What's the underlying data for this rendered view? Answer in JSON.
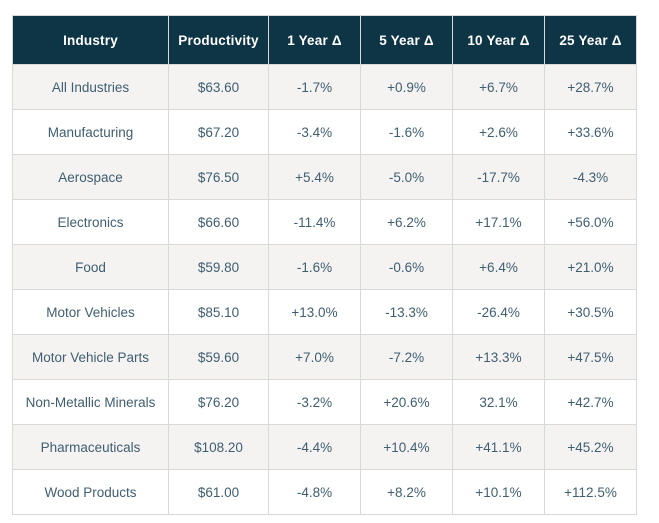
{
  "colors": {
    "header_bg": "#0e3546",
    "header_text": "#ffffff",
    "body_text": "#3f5e70",
    "row_alt_bg": "#f4f3f2",
    "row_bg": "#ffffff",
    "border": "#d9d9d9"
  },
  "chart_data": {
    "type": "table",
    "columns": [
      "Industry",
      "Productivity",
      "1 Year Δ",
      "5 Year Δ",
      "10 Year Δ",
      "25 Year Δ"
    ],
    "rows": [
      [
        "All Industries",
        "$63.60",
        "-1.7%",
        "+0.9%",
        "+6.7%",
        "+28.7%"
      ],
      [
        "Manufacturing",
        "$67.20",
        "-3.4%",
        "-1.6%",
        "+2.6%",
        "+33.6%"
      ],
      [
        "Aerospace",
        "$76.50",
        "+5.4%",
        "-5.0%",
        "-17.7%",
        "-4.3%"
      ],
      [
        "Electronics",
        "$66.60",
        "-11.4%",
        "+6.2%",
        "+17.1%",
        "+56.0%"
      ],
      [
        "Food",
        "$59.80",
        "-1.6%",
        "-0.6%",
        "+6.4%",
        "+21.0%"
      ],
      [
        "Motor Vehicles",
        "$85.10",
        "+13.0%",
        "-13.3%",
        "-26.4%",
        "+30.5%"
      ],
      [
        "Motor Vehicle Parts",
        "$59.60",
        "+7.0%",
        "-7.2%",
        "+13.3%",
        "+47.5%"
      ],
      [
        "Non-Metallic Minerals",
        "$76.20",
        "-3.2%",
        "+20.6%",
        "32.1%",
        "+42.7%"
      ],
      [
        "Pharmaceuticals",
        "$108.20",
        "-4.4%",
        "+10.4%",
        "+41.1%",
        "+45.2%"
      ],
      [
        "Wood Products",
        "$61.00",
        "-4.8%",
        "+8.2%",
        "+10.1%",
        "+112.5%"
      ]
    ]
  }
}
